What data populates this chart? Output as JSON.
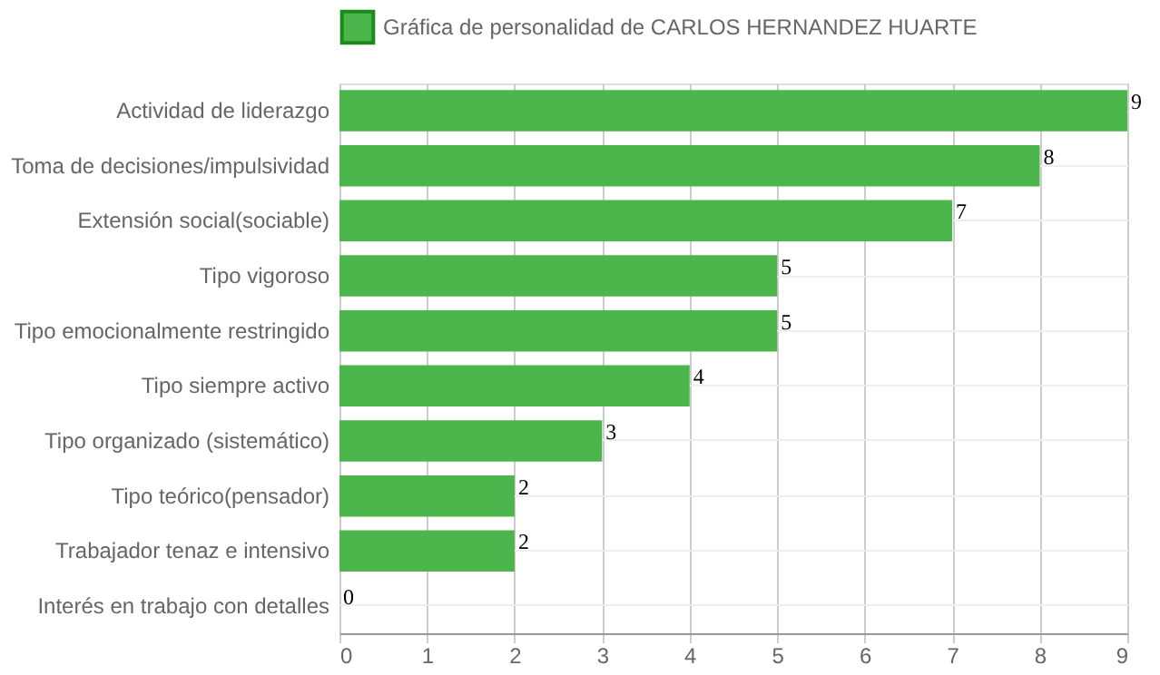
{
  "chart_data": {
    "type": "bar",
    "orientation": "horizontal",
    "categories": [
      "Actividad de liderazgo",
      "Toma de decisiones/impulsividad",
      "Extensión social(sociable)",
      "Tipo vigoroso",
      "Tipo emocionalmente restringido",
      "Tipo siempre activo",
      "Tipo organizado (sistemático)",
      "Tipo teórico(pensador)",
      "Trabajador tenaz e intensivo",
      "Interés en trabajo con detalles"
    ],
    "series": [
      {
        "name": "Gráfica de personalidad de CARLOS HERNANDEZ HUARTE",
        "color": "#4cb54c",
        "values": [
          9,
          8,
          7,
          5,
          5,
          4,
          3,
          2,
          2,
          0
        ]
      }
    ],
    "xlim": [
      0,
      9
    ],
    "xticks": [
      0,
      1,
      2,
      3,
      4,
      5,
      6,
      7,
      8,
      9
    ],
    "grid": true,
    "legend": "top",
    "data_labels": true
  }
}
